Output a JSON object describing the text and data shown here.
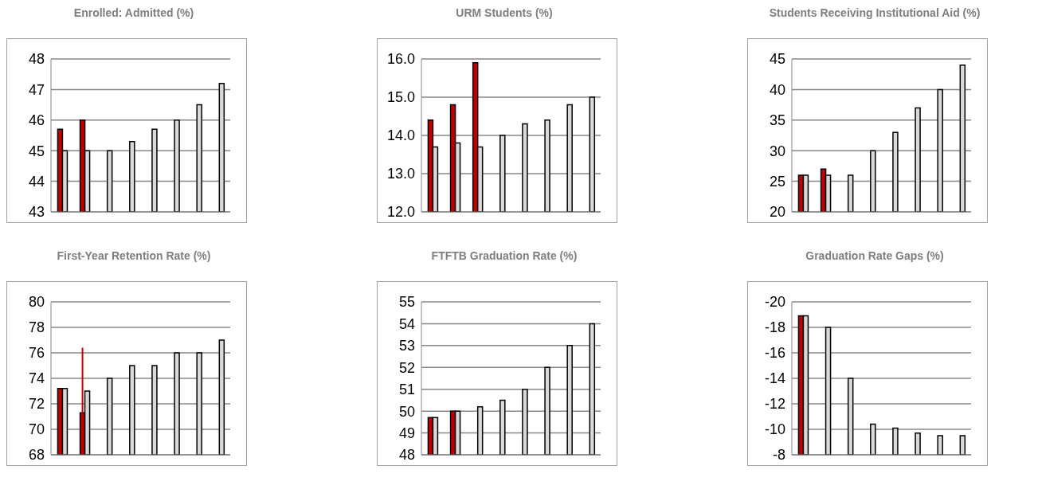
{
  "chart_data": [
    {
      "type": "bar",
      "title": "Enrolled: Admitted (%)",
      "categories": [
        null,
        null,
        null,
        null,
        null,
        null,
        null,
        null
      ],
      "series": [
        {
          "color": "#c00000",
          "values": [
            45.7,
            46,
            null,
            null,
            null,
            null,
            null,
            null
          ]
        },
        {
          "color": "#d9d9d9",
          "values": [
            45,
            45,
            45,
            45.3,
            45.7,
            46,
            46.5,
            47.2
          ]
        }
      ],
      "ylim": [
        43,
        48
      ],
      "yticks": [
        43,
        44,
        45,
        46,
        47,
        48
      ],
      "grid": "y",
      "tick_labels": "y"
    },
    {
      "type": "bar",
      "title": "URM Students (%)",
      "categories": [
        null,
        null,
        null,
        null,
        null,
        null,
        null,
        null
      ],
      "series": [
        {
          "color": "#c00000",
          "values": [
            14.4,
            14.8,
            15.9,
            null,
            null,
            null,
            null,
            null
          ]
        },
        {
          "color": "#d9d9d9",
          "values": [
            13.7,
            13.8,
            13.7,
            14.0,
            14.3,
            14.4,
            14.8,
            15.0
          ]
        }
      ],
      "ylim": [
        12,
        16
      ],
      "yticks": [
        {
          "value": 12,
          "label": "12.0"
        },
        {
          "value": 13,
          "label": "13.0"
        },
        {
          "value": 14,
          "label": "14.0"
        },
        {
          "value": 15,
          "label": "15.0"
        },
        {
          "value": 16,
          "label": "16.0"
        }
      ],
      "grid": "y",
      "tick_labels": "y"
    },
    {
      "type": "bar",
      "title": "Students Receiving Institutional Aid (%)",
      "categories": [
        null,
        null,
        null,
        null,
        null,
        null,
        null,
        null
      ],
      "series": [
        {
          "color": "#c00000",
          "values": [
            26,
            27,
            null,
            null,
            null,
            null,
            null,
            null
          ]
        },
        {
          "color": "#d9d9d9",
          "values": [
            26,
            26,
            26,
            30,
            33,
            37,
            40,
            44
          ]
        }
      ],
      "ylim": [
        20,
        45
      ],
      "yticks": [
        20,
        25,
        30,
        35,
        40,
        45
      ],
      "grid": "y",
      "tick_labels": "y"
    },
    {
      "type": "bar",
      "title": "First-Year Retention Rate (%)",
      "categories": [
        null,
        null,
        null,
        null,
        null,
        null,
        null,
        null
      ],
      "series": [
        {
          "color": "#c00000",
          "values": [
            73.2,
            71.3,
            null,
            null,
            null,
            null,
            null,
            null
          ],
          "errors": [
            null,
            [
              71.3,
              76.4
            ],
            null,
            null,
            null,
            null,
            null,
            null
          ]
        },
        {
          "color": "#d9d9d9",
          "values": [
            73.2,
            73,
            74,
            75,
            75,
            76,
            76,
            77
          ]
        }
      ],
      "ylim": [
        68,
        80
      ],
      "yticks": [
        68,
        70,
        72,
        74,
        76,
        78,
        80
      ],
      "grid": "y",
      "tick_labels": "y"
    },
    {
      "type": "bar",
      "title": "FTFTB Graduation Rate (%)",
      "categories": [
        null,
        null,
        null,
        null,
        null,
        null,
        null,
        null
      ],
      "series": [
        {
          "color": "#c00000",
          "values": [
            49.7,
            50,
            null,
            null,
            null,
            null,
            null,
            null
          ]
        },
        {
          "color": "#d9d9d9",
          "values": [
            49.7,
            50,
            50.2,
            50.5,
            51,
            52,
            53,
            54
          ]
        }
      ],
      "ylim": [
        48,
        55
      ],
      "yticks": [
        48,
        49,
        50,
        51,
        52,
        53,
        54,
        55
      ],
      "grid": "y",
      "tick_labels": "y"
    },
    {
      "type": "bar",
      "title": "Graduation Rate Gaps (%)",
      "categories": [
        null,
        null,
        null,
        null,
        null,
        null,
        null,
        null
      ],
      "series": [
        {
          "color": "#c00000",
          "values": [
            -18.9,
            null,
            null,
            null,
            null,
            null,
            null,
            null
          ]
        },
        {
          "color": "#d9d9d9",
          "values": [
            -18.9,
            -18,
            -14,
            -10.4,
            -10.1,
            -9.7,
            -9.5,
            -9.5
          ]
        }
      ],
      "ylim": [
        -8,
        -20
      ],
      "yticks": [
        -20,
        -18,
        -16,
        -14,
        -12,
        -10,
        -8
      ],
      "grid": "y",
      "tick_labels": "y"
    }
  ]
}
